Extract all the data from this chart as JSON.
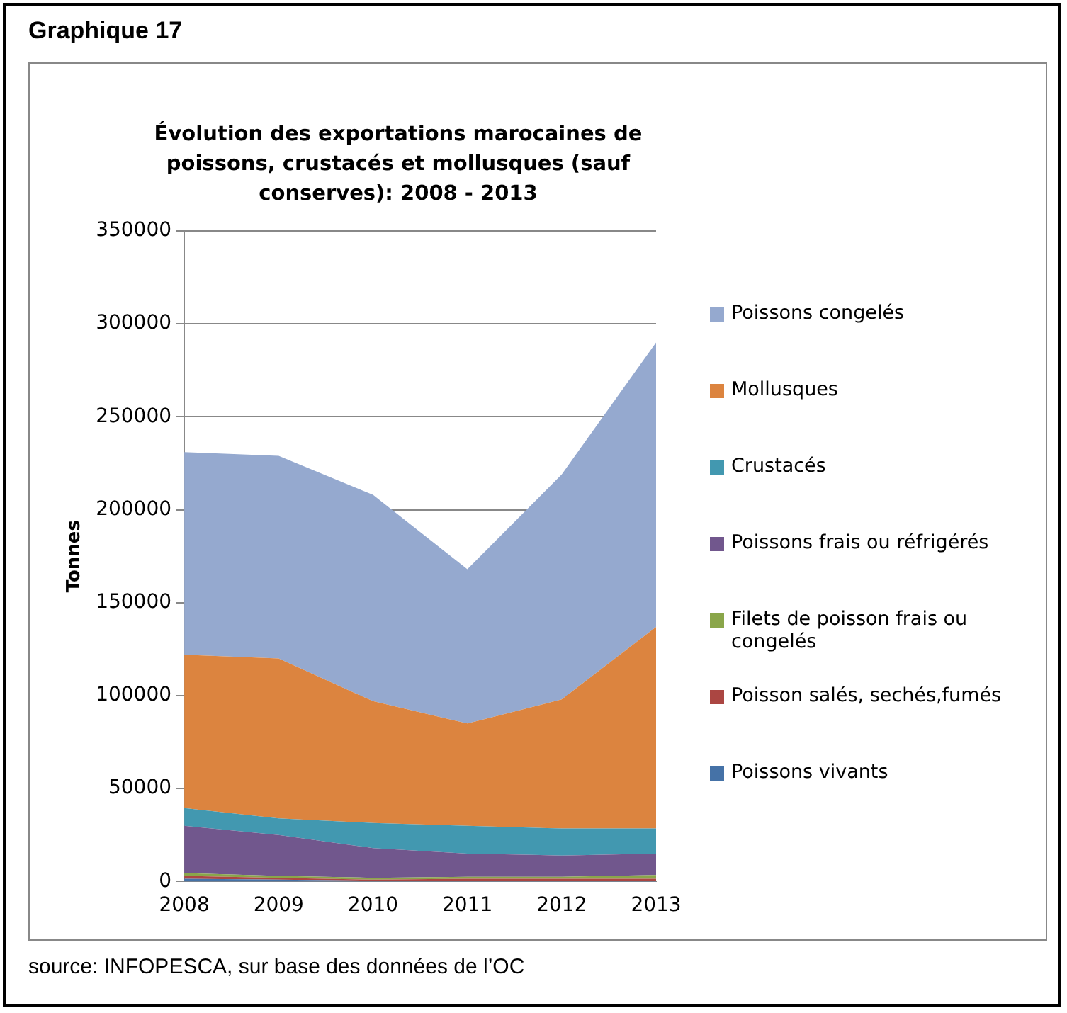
{
  "chart_data": {
    "type": "area",
    "title": "Évolution des exportations marocaines de poissons, crustacés et mollusques (sauf conserves): 2008 - 2013",
    "ylabel": "Tonnes",
    "categories": [
      "2008",
      "2009",
      "2010",
      "2011",
      "2012",
      "2013"
    ],
    "stacked": true,
    "series": [
      {
        "name": "Poissons vivants",
        "color": "#4572a7",
        "values": [
          1500,
          1000,
          500,
          500,
          500,
          500
        ]
      },
      {
        "name": "Poisson salés, sechés,fumés",
        "color": "#ab4642",
        "values": [
          1500,
          1000,
          500,
          1000,
          1000,
          1000
        ]
      },
      {
        "name": "Filets de poisson frais ou congelés",
        "color": "#8aa64a",
        "values": [
          1500,
          1000,
          1000,
          1000,
          1000,
          2000
        ]
      },
      {
        "name": "Poissons frais ou réfrigérés",
        "color": "#71578d",
        "values": [
          25500,
          22000,
          16000,
          12500,
          11500,
          11500
        ]
      },
      {
        "name": "Crustacés",
        "color": "#4298b0",
        "values": [
          9500,
          9000,
          13500,
          15000,
          14500,
          13500
        ]
      },
      {
        "name": "Mollusques",
        "color": "#dc843f",
        "values": [
          82500,
          86000,
          65500,
          55000,
          69500,
          108500
        ]
      },
      {
        "name": "Poissons congelés",
        "color": "#95a9cf",
        "values": [
          109000,
          109000,
          111000,
          83000,
          121000,
          153000
        ]
      }
    ],
    "ylim": [
      0,
      350000
    ],
    "yticks": [
      0,
      50000,
      100000,
      150000,
      200000,
      250000,
      300000,
      350000
    ],
    "grid": "y",
    "legend": "right",
    "annotations": [
      "Graphique 17",
      "source: INFOPESCA, sur base des données de l’OC"
    ]
  }
}
